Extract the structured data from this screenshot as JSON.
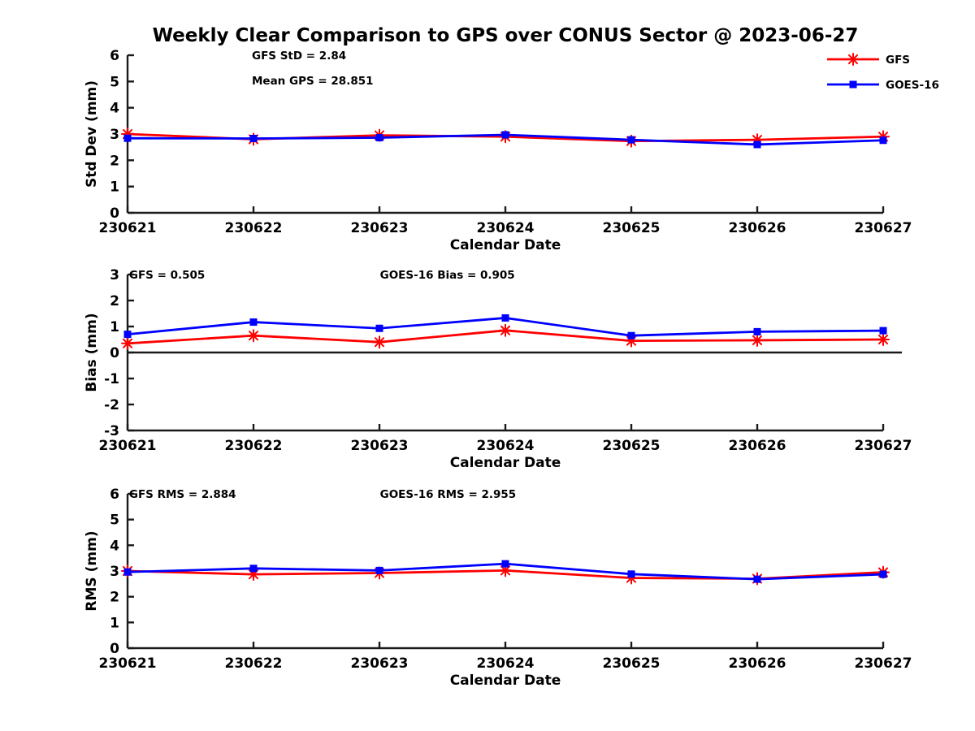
{
  "title": "Weekly Clear Comparison to GPS over CONUS Sector @ 2023-06-27",
  "colors": {
    "gfs": "#ff0000",
    "goes16": "#0000ff",
    "axis": "#1a1a1a",
    "text": "#000000",
    "zero_line": "#1a1a1a"
  },
  "legend": {
    "position": "top-right",
    "items": [
      {
        "label": "GFS",
        "color": "#ff0000",
        "marker": "asterisk"
      },
      {
        "label": "GOES-16",
        "color": "#0000ff",
        "marker": "square"
      }
    ]
  },
  "chart_data": [
    {
      "type": "line",
      "title": "",
      "ylabel": "Std Dev (mm)",
      "xlabel": "Calendar Date",
      "ylim": [
        0,
        6
      ],
      "yticks": [
        0,
        1,
        2,
        3,
        4,
        5,
        6
      ],
      "grid": false,
      "zero_line": false,
      "categories": [
        "230621",
        "230622",
        "230623",
        "230624",
        "230625",
        "230626",
        "230627"
      ],
      "series": [
        {
          "name": "GFS",
          "color": "#ff0000",
          "marker": "asterisk",
          "values": [
            3.0,
            2.8,
            2.95,
            2.9,
            2.73,
            2.78,
            2.9
          ]
        },
        {
          "name": "GOES-16",
          "color": "#0000ff",
          "marker": "square",
          "values": [
            2.84,
            2.83,
            2.86,
            2.97,
            2.78,
            2.6,
            2.76
          ]
        }
      ],
      "annotations": [
        {
          "text": "GFS StD = 2.84",
          "fx": 0.1645,
          "fy": 0.0
        },
        {
          "text": "Mean GPS = 28.851",
          "fx": 0.1645,
          "fy": 0.16
        }
      ]
    },
    {
      "type": "line",
      "title": "",
      "ylabel": "Bias (mm)",
      "xlabel": "Calendar Date",
      "ylim": [
        -3,
        3
      ],
      "yticks": [
        -3,
        -2,
        -1,
        0,
        1,
        2,
        3
      ],
      "grid": false,
      "zero_line": true,
      "categories": [
        "230621",
        "230622",
        "230623",
        "230624",
        "230625",
        "230626",
        "230627"
      ],
      "series": [
        {
          "name": "GFS",
          "color": "#ff0000",
          "marker": "asterisk",
          "values": [
            0.35,
            0.65,
            0.4,
            0.85,
            0.45,
            0.47,
            0.5
          ]
        },
        {
          "name": "GOES-16",
          "color": "#0000ff",
          "marker": "square",
          "values": [
            0.7,
            1.17,
            0.93,
            1.33,
            0.65,
            0.8,
            0.84
          ]
        }
      ],
      "annotations": [
        {
          "text": "GFS = 0.505",
          "fx": 0.002,
          "fy": 0.0
        },
        {
          "text": "GOES-16 Bias  = 0.905",
          "fx": 0.334,
          "fy": 0.0
        }
      ]
    },
    {
      "type": "line",
      "title": "",
      "ylabel": "RMS (mm)",
      "xlabel": "Calendar Date",
      "ylim": [
        0,
        6
      ],
      "yticks": [
        0,
        1,
        2,
        3,
        4,
        5,
        6
      ],
      "grid": false,
      "zero_line": false,
      "categories": [
        "230621",
        "230622",
        "230623",
        "230624",
        "230625",
        "230626",
        "230627"
      ],
      "series": [
        {
          "name": "GFS",
          "color": "#ff0000",
          "marker": "asterisk",
          "values": [
            3.0,
            2.87,
            2.92,
            3.02,
            2.73,
            2.7,
            2.95
          ]
        },
        {
          "name": "GOES-16",
          "color": "#0000ff",
          "marker": "square",
          "values": [
            2.96,
            3.1,
            3.02,
            3.28,
            2.88,
            2.68,
            2.87
          ]
        }
      ],
      "annotations": [
        {
          "text": "GFS RMS = 2.884",
          "fx": 0.002,
          "fy": 0.0
        },
        {
          "text": "GOES-16 RMS = 2.955",
          "fx": 0.334,
          "fy": 0.0
        }
      ]
    }
  ]
}
